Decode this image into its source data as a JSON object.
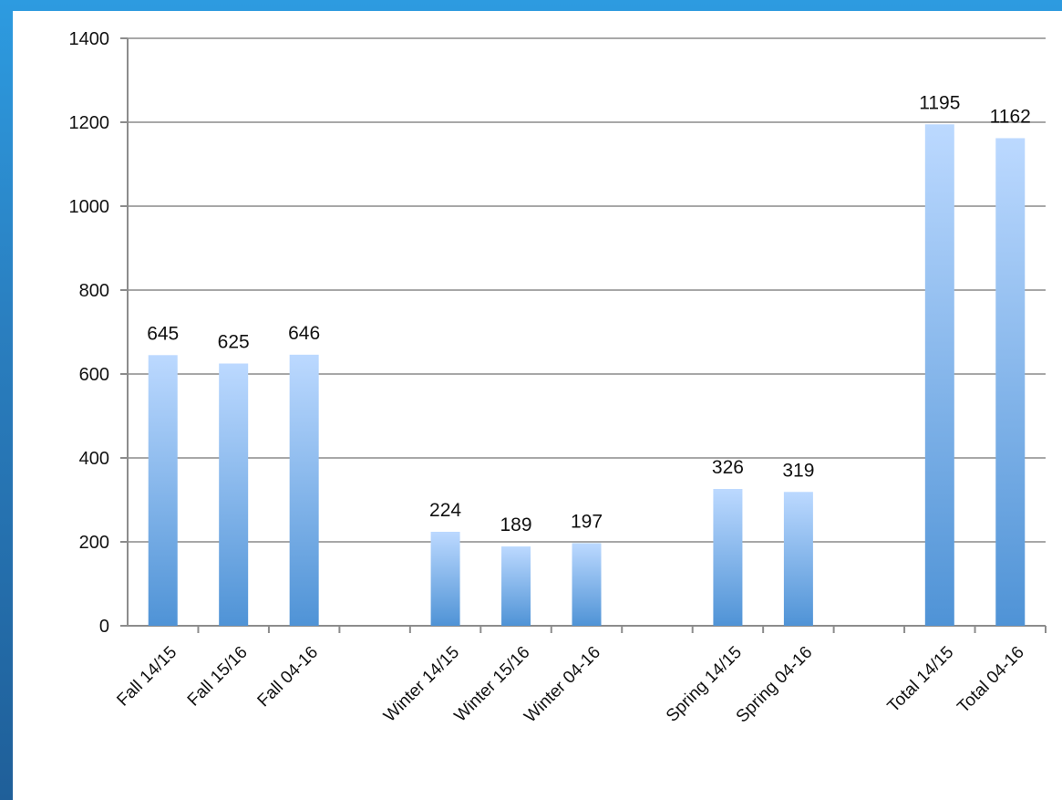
{
  "chart_data": {
    "type": "bar",
    "categories": [
      "Fall 14/15",
      "Fall 15/16",
      "Fall 04-16",
      "",
      "Winter 14/15",
      "Winter 15/16",
      "Winter 04-16",
      "",
      "Spring 14/15",
      "Spring 04-16",
      "",
      "Total 14/15",
      "Total 04-16"
    ],
    "values": [
      645,
      625,
      646,
      null,
      224,
      189,
      197,
      null,
      326,
      319,
      null,
      1195,
      1162
    ],
    "data_labels": [
      "645",
      "625",
      "646",
      "",
      "224",
      "189",
      "197",
      "",
      "326",
      "319",
      "",
      "1195",
      "1162"
    ],
    "yticks": [
      "0",
      "200",
      "400",
      "600",
      "800",
      "1000",
      "1200",
      "1400"
    ],
    "ylim": [
      0,
      1400
    ],
    "title": "",
    "xlabel": "",
    "ylabel": "",
    "grid": true,
    "legend": "none",
    "colors": {
      "bar_top": "#bcd9ff",
      "bar_bottom": "#4f93d6",
      "grid": "#a8a8a8",
      "axis": "#8c8c8c",
      "frame_background": "#2a86c8",
      "panel_background": "#ffffff"
    }
  }
}
